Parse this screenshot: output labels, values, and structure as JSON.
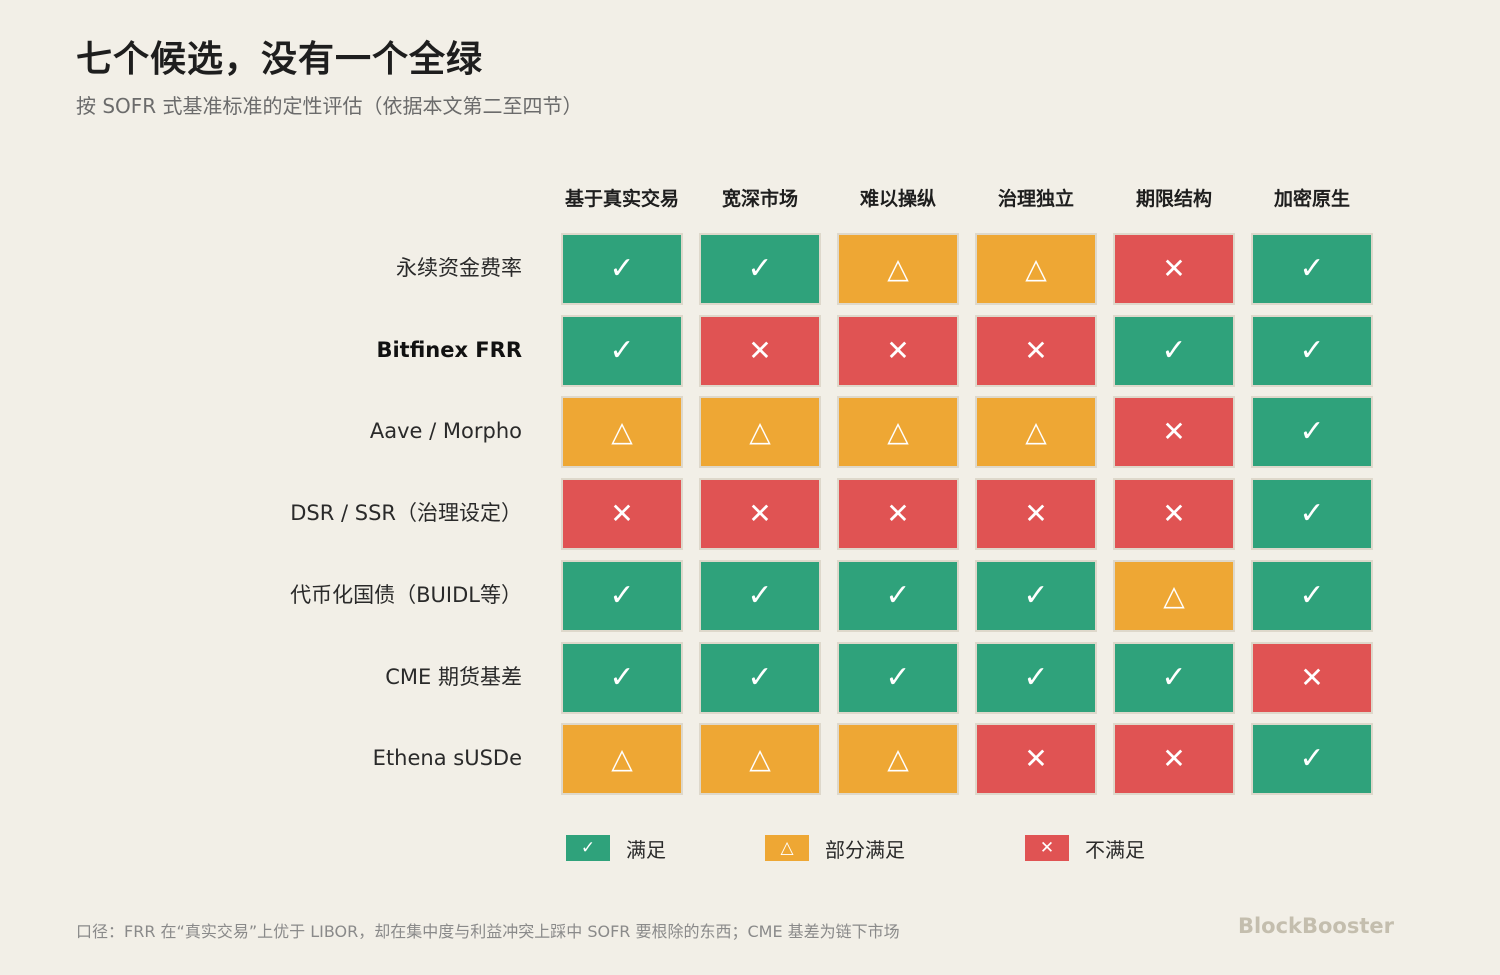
{
  "title": "七个候选，没有一个全绿",
  "subtitle": "按 SOFR 式基准标准的定性评估（依据本文第二至四节）",
  "chart_data": {
    "type": "table",
    "columns": [
      "基于真实交易",
      "宽深市场",
      "难以操纵",
      "治理独立",
      "期限结构",
      "加密原生"
    ],
    "rows": [
      {
        "label": "永续资金费率",
        "bold": false,
        "values": [
          "yes",
          "yes",
          "partial",
          "partial",
          "no",
          "yes"
        ]
      },
      {
        "label": "Bitfinex FRR",
        "bold": true,
        "values": [
          "yes",
          "no",
          "no",
          "no",
          "yes",
          "yes"
        ]
      },
      {
        "label": "Aave / Morpho",
        "bold": false,
        "values": [
          "partial",
          "partial",
          "partial",
          "partial",
          "no",
          "yes"
        ]
      },
      {
        "label": "DSR / SSR（治理设定）",
        "bold": false,
        "values": [
          "no",
          "no",
          "no",
          "no",
          "no",
          "yes"
        ]
      },
      {
        "label": "代币化国债（BUIDL等）",
        "bold": false,
        "values": [
          "yes",
          "yes",
          "yes",
          "yes",
          "partial",
          "yes"
        ]
      },
      {
        "label": "CME 期货基差",
        "bold": false,
        "values": [
          "yes",
          "yes",
          "yes",
          "yes",
          "yes",
          "no"
        ]
      },
      {
        "label": "Ethena sUSDe",
        "bold": false,
        "values": [
          "partial",
          "partial",
          "partial",
          "no",
          "no",
          "yes"
        ]
      }
    ],
    "symbols": {
      "yes": "✓",
      "partial": "△",
      "no": "✕"
    },
    "colors": {
      "yes": "#2fa27b",
      "partial": "#eea734",
      "no": "#e05353",
      "background": "#f2efe7"
    },
    "legend": [
      {
        "key": "yes",
        "label": "满足"
      },
      {
        "key": "partial",
        "label": "部分满足"
      },
      {
        "key": "no",
        "label": "不满足"
      }
    ]
  },
  "footnote": "口径：FRR 在“真实交易”上优于 LIBOR，却在集中度与利益冲突上踩中 SOFR 要根除的东西；CME 基差为链下市场",
  "brand": "BlockBooster"
}
